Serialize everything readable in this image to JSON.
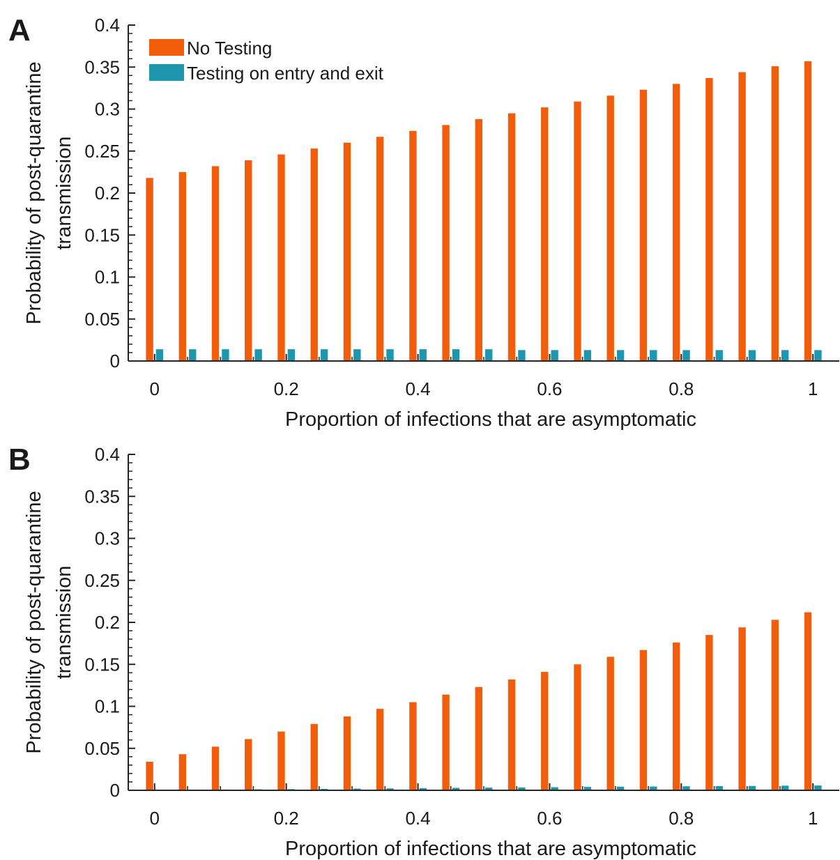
{
  "colors": {
    "no_testing": "#F25D0C",
    "testing": "#1E96AE",
    "axis": "#262626"
  },
  "chart_data": [
    {
      "panel_label": "A",
      "type": "bar",
      "xlabel": "Proportion of infections that are asymptomatic",
      "ylabel_lines": [
        "Probability of post-quarantine",
        "transmission"
      ],
      "x": [
        0,
        0.05,
        0.1,
        0.15,
        0.2,
        0.25,
        0.3,
        0.35,
        0.4,
        0.45,
        0.5,
        0.55,
        0.6,
        0.65,
        0.7,
        0.75,
        0.8,
        0.85,
        0.9,
        0.95,
        1
      ],
      "xlim": [
        -0.04,
        1.04
      ],
      "ylim": [
        0,
        0.4
      ],
      "x_ticks": [
        0,
        0.2,
        0.4,
        0.6,
        0.8,
        1
      ],
      "x_tick_labels": [
        "0",
        "0.2",
        "0.4",
        "0.6",
        "0.8",
        "1"
      ],
      "y_ticks": [
        0,
        0.05,
        0.1,
        0.15,
        0.2,
        0.25,
        0.3,
        0.35,
        0.4
      ],
      "y_tick_labels": [
        "0",
        "0.05",
        "0.1",
        "0.15",
        "0.2",
        "0.25",
        "0.3",
        "0.35",
        "0.4"
      ],
      "legend": {
        "position": "top-left",
        "entries": [
          "No Testing",
          "Testing on entry and exit"
        ]
      },
      "series": [
        {
          "name": "No Testing",
          "values": [
            0.218,
            0.225,
            0.232,
            0.239,
            0.246,
            0.253,
            0.26,
            0.267,
            0.274,
            0.281,
            0.288,
            0.295,
            0.302,
            0.309,
            0.316,
            0.323,
            0.33,
            0.337,
            0.344,
            0.351,
            0.357
          ]
        },
        {
          "name": "Testing on entry and exit",
          "values": [
            0.014,
            0.014,
            0.014,
            0.014,
            0.014,
            0.014,
            0.014,
            0.014,
            0.014,
            0.014,
            0.014,
            0.013,
            0.013,
            0.013,
            0.013,
            0.013,
            0.013,
            0.013,
            0.013,
            0.013,
            0.013
          ]
        }
      ]
    },
    {
      "panel_label": "B",
      "type": "bar",
      "xlabel": "Proportion of infections that are asymptomatic",
      "ylabel_lines": [
        "Probability of post-quarantine",
        "transmission"
      ],
      "x": [
        0,
        0.05,
        0.1,
        0.15,
        0.2,
        0.25,
        0.3,
        0.35,
        0.4,
        0.45,
        0.5,
        0.55,
        0.6,
        0.65,
        0.7,
        0.75,
        0.8,
        0.85,
        0.9,
        0.95,
        1
      ],
      "xlim": [
        -0.04,
        1.04
      ],
      "ylim": [
        0,
        0.4
      ],
      "x_ticks": [
        0,
        0.2,
        0.4,
        0.6,
        0.8,
        1
      ],
      "x_tick_labels": [
        "0",
        "0.2",
        "0.4",
        "0.6",
        "0.8",
        "1"
      ],
      "y_ticks": [
        0,
        0.05,
        0.1,
        0.15,
        0.2,
        0.25,
        0.3,
        0.35,
        0.4
      ],
      "y_tick_labels": [
        "0",
        "0.05",
        "0.1",
        "0.15",
        "0.2",
        "0.25",
        "0.3",
        "0.35",
        "0.4"
      ],
      "series": [
        {
          "name": "No Testing",
          "values": [
            0.034,
            0.043,
            0.052,
            0.061,
            0.07,
            0.079,
            0.088,
            0.097,
            0.105,
            0.114,
            0.123,
            0.132,
            0.141,
            0.15,
            0.159,
            0.167,
            0.176,
            0.185,
            0.194,
            0.203,
            0.212
          ]
        },
        {
          "name": "Testing on entry and exit",
          "values": [
            0.0003,
            0.0006,
            0.0009,
            0.0012,
            0.0014,
            0.0017,
            0.002,
            0.0023,
            0.0026,
            0.0029,
            0.0032,
            0.0034,
            0.0037,
            0.004,
            0.0043,
            0.0045,
            0.0048,
            0.005,
            0.0052,
            0.0055,
            0.0057
          ]
        }
      ]
    }
  ]
}
